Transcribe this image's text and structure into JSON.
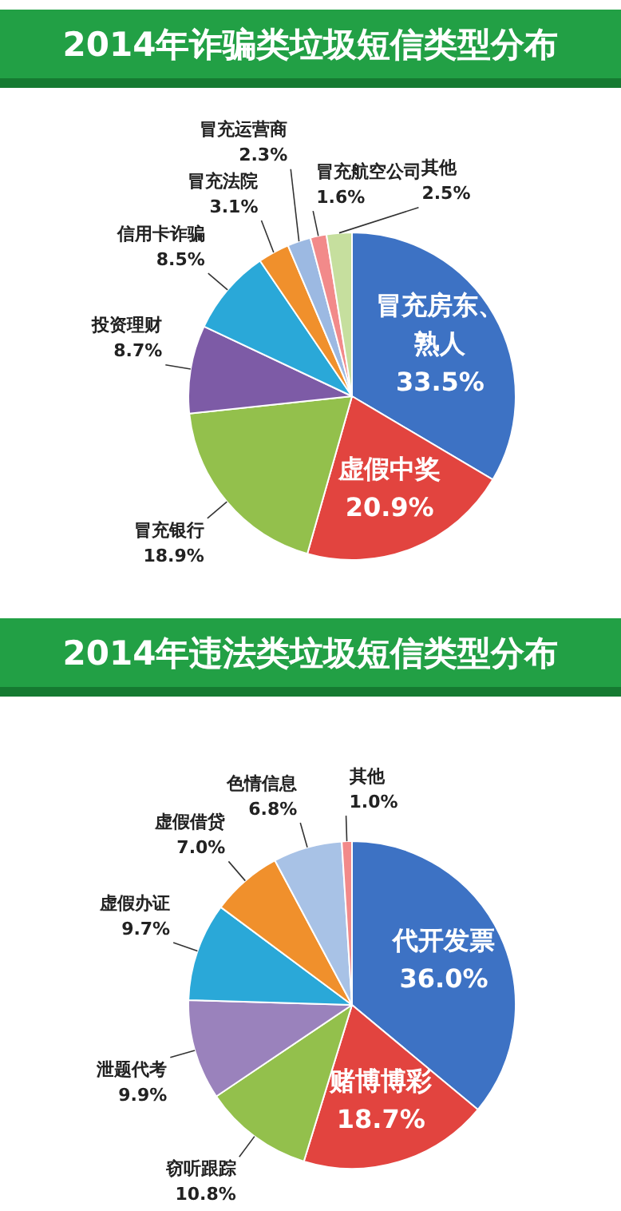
{
  "chart_data": [
    {
      "type": "pie",
      "title": "2014年诈骗类垃圾短信类型分布",
      "legend": false,
      "categories": [
        "冒充房东、熟人",
        "虚假中奖",
        "冒充银行",
        "投资理财",
        "信用卡诈骗",
        "冒充法院",
        "冒充运营商",
        "冒充航空公司",
        "其他"
      ],
      "values": [
        33.5,
        20.9,
        18.9,
        8.7,
        8.5,
        3.1,
        2.3,
        1.6,
        2.5
      ],
      "value_labels": [
        "33.5%",
        "20.9%",
        "18.9%",
        "8.7%",
        "8.5%",
        "3.1%",
        "2.3%",
        "1.6%",
        "2.5%"
      ],
      "colors": [
        "#3d72c4",
        "#e2443f",
        "#93c04c",
        "#7d5ba6",
        "#2aa8d8",
        "#f0902c",
        "#9cb9e2",
        "#f28a8a",
        "#c6df9e"
      ]
    },
    {
      "type": "pie",
      "title": "2014年违法类垃圾短信类型分布",
      "legend": false,
      "categories": [
        "代开发票",
        "赌博博彩",
        "窃听跟踪",
        "泄题代考",
        "虚假办证",
        "虚假借贷",
        "色情信息",
        "其他"
      ],
      "values": [
        36.0,
        18.7,
        10.8,
        9.9,
        9.7,
        7.0,
        6.8,
        1.0
      ],
      "value_labels": [
        "36.0%",
        "18.7%",
        "10.8%",
        "9.9%",
        "9.7%",
        "7.0%",
        "6.8%",
        "1.0%"
      ],
      "colors": [
        "#3d72c4",
        "#e2443f",
        "#93c04c",
        "#9a82bc",
        "#2aa8d8",
        "#f0902c",
        "#a8c2e6",
        "#f28a8a"
      ]
    }
  ]
}
